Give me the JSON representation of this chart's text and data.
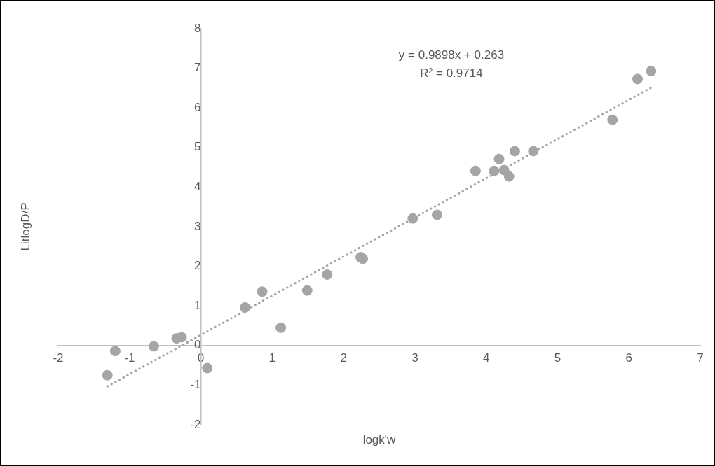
{
  "chart_data": {
    "type": "scatter",
    "xlabel": "logk'w",
    "ylabel": "LitlogD/P",
    "xlim": [
      -2,
      7
    ],
    "xticks": [
      -2,
      -1,
      0,
      1,
      2,
      3,
      4,
      5,
      6,
      7
    ],
    "ylim": [
      -2,
      8
    ],
    "yticks": [
      -2,
      -1,
      0,
      1,
      2,
      3,
      4,
      5,
      6,
      7,
      8
    ],
    "grid": false,
    "legend": false,
    "marker": "circle",
    "annotations": [
      "y = 0.9898x + 0.263",
      "R² = 0.9714"
    ],
    "series": [
      {
        "color": "#a5a5a5",
        "x": [
          -1.31,
          -1.2,
          -0.66,
          -0.34,
          -0.27,
          0.09,
          0.62,
          0.86,
          1.12,
          1.49,
          1.77,
          2.24,
          2.27,
          2.97,
          3.31,
          3.85,
          4.11,
          4.18,
          4.25,
          4.32,
          4.4,
          4.66,
          5.77,
          6.12,
          6.31
        ],
        "values": [
          -0.75,
          -0.14,
          -0.02,
          0.18,
          0.21,
          -0.57,
          0.96,
          1.36,
          0.45,
          1.39,
          1.79,
          2.23,
          2.19,
          3.21,
          3.3,
          4.41,
          4.41,
          4.71,
          4.43,
          4.27,
          4.91,
          4.91,
          5.7,
          6.73,
          6.93
        ]
      },
      {
        "type": "line",
        "color": "#a5a5a5",
        "line_style": "dotted",
        "marker": "none",
        "x": [
          -1.31,
          6.31
        ],
        "values": [
          -1.03,
          6.51
        ]
      }
    ]
  }
}
